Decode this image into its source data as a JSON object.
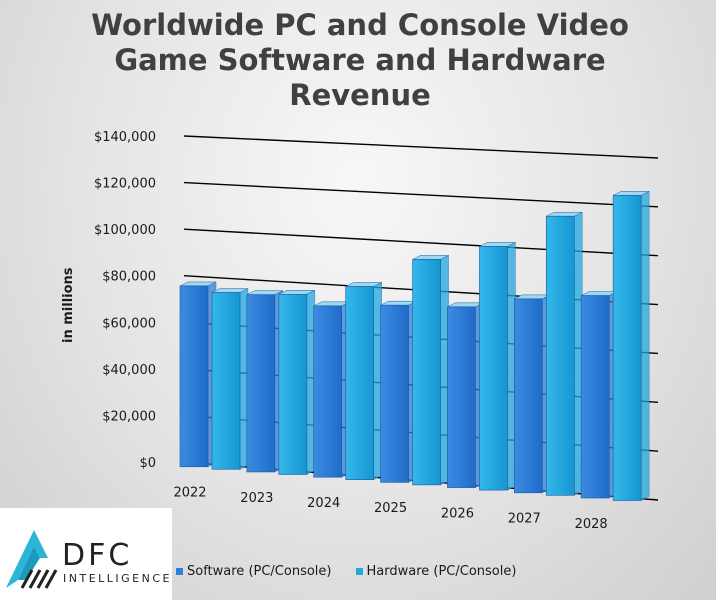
{
  "chart_data": {
    "type": "bar",
    "title": "Worldwide PC and Console Video Game Software and Hardware Revenue",
    "ylabel": "in millions",
    "xlabel": "",
    "categories": [
      "2022",
      "2023",
      "2024",
      "2025",
      "2026",
      "2027",
      "2028"
    ],
    "series": [
      {
        "name": "Software (PC/Console)",
        "color": "#2f7fd8",
        "values": [
          75000,
          73000,
          70000,
          72000,
          73000,
          78000,
          81000
        ]
      },
      {
        "name": "Hardware (PC/Console)",
        "color": "#20a8e0",
        "values": [
          73000,
          74000,
          79000,
          92000,
          99000,
          113000,
          123000
        ]
      }
    ],
    "ylim": [
      0,
      140000
    ],
    "yticks": [
      "$0",
      "$20,000",
      "$40,000",
      "$60,000",
      "$80,000",
      "$100,000",
      "$120,000",
      "$140,000"
    ],
    "grid": true,
    "legend": "bottom"
  },
  "logo": {
    "main": "DFC",
    "sub": "INTELLIGENCE"
  }
}
